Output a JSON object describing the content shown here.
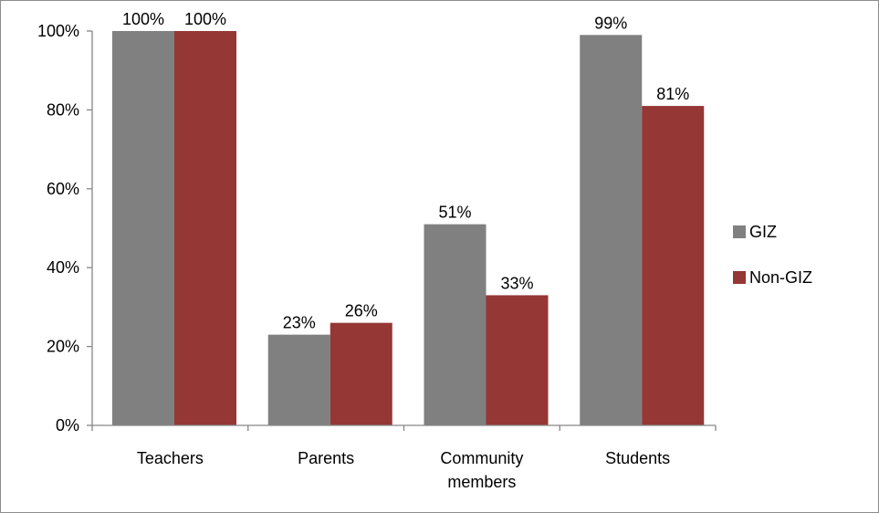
{
  "chart_data": {
    "type": "bar",
    "categories": [
      [
        "Teachers"
      ],
      [
        "Parents"
      ],
      [
        "Community",
        "members"
      ],
      [
        "Students"
      ]
    ],
    "series": [
      {
        "name": "GIZ",
        "color": "#808080",
        "values": [
          100,
          23,
          51,
          99
        ],
        "labels": [
          "100%",
          "23%",
          "51%",
          "99%"
        ]
      },
      {
        "name": "Non-GIZ",
        "color": "#953735",
        "values": [
          100,
          26,
          33,
          81
        ],
        "labels": [
          "100%",
          "26%",
          "33%",
          "81%"
        ]
      }
    ],
    "yticks": [
      "0%",
      "20%",
      "40%",
      "60%",
      "80%",
      "100%"
    ],
    "ylim": [
      0,
      100
    ],
    "grid": false,
    "legend_position": "right"
  }
}
